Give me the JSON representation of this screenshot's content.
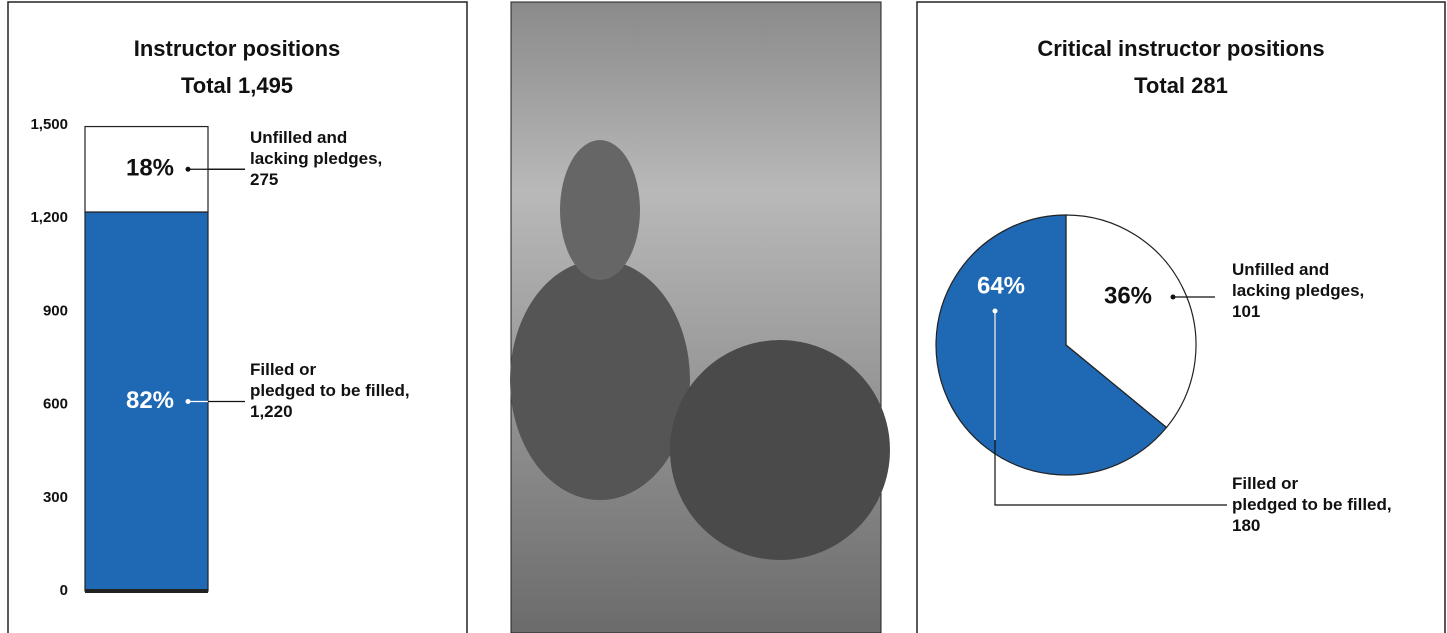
{
  "chart_data": [
    {
      "type": "bar",
      "stacked": true,
      "title": "Instructor positions",
      "subtitle": "Total 1,495",
      "ylim": [
        0,
        1500
      ],
      "yticks": [
        0,
        300,
        600,
        900,
        {
          "value": 1200,
          "label": "1,200"
        },
        {
          "value": 1500,
          "label": "1,500"
        }
      ],
      "series": [
        {
          "name": "Filled or\npledged to be filled,",
          "color": "#1f68b4",
          "values": [
            1220
          ],
          "value_labels": [
            "1,220"
          ],
          "percents": [
            82
          ],
          "percent_labels": [
            "82%"
          ]
        },
        {
          "name": "Unfilled and\nlacking pledges,",
          "color": "#ffffff",
          "values": [
            275
          ],
          "percents": [
            18
          ],
          "percent_labels": [
            "18%"
          ]
        }
      ]
    },
    {
      "type": "pie",
      "title": "Critical instructor positions",
      "subtitle": "Total 281",
      "series": [
        {
          "name": "Unfilled and\nlacking pledges,",
          "color": "#ffffff",
          "values": [
            101
          ],
          "percents": [
            36
          ],
          "percent_labels": [
            "36%"
          ]
        },
        {
          "name": "Filled or\npledged to be filled,",
          "color": "#1f68b4",
          "values": [
            180
          ],
          "percents": [
            64
          ],
          "percent_labels": [
            "64%"
          ]
        }
      ]
    }
  ]
}
